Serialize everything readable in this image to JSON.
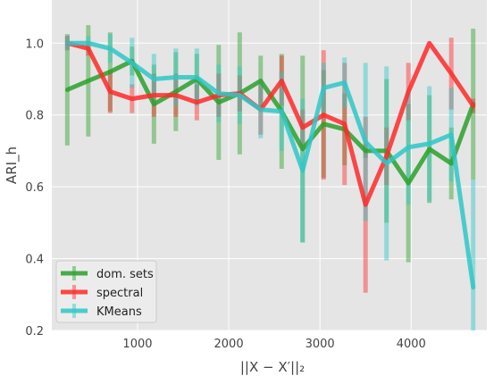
{
  "chart_data": {
    "type": "line",
    "xlabel": "||X − X′||₂",
    "ylabel": "ARI_h",
    "xlim": [
      60,
      4830
    ],
    "ylim": [
      0.2,
      1.12
    ],
    "xticks": [
      1000,
      2000,
      3000,
      4000
    ],
    "xtick_labels": [
      "1000",
      "2000",
      "3000",
      "4000"
    ],
    "yticks": [
      0.2,
      0.4,
      0.6,
      0.8,
      1.0
    ],
    "ytick_labels": [
      "0.2",
      "0.4",
      "0.6",
      "0.8",
      "1.0"
    ],
    "grid": true,
    "legend_position": "lower-left",
    "background": "#e5e5e5",
    "series": [
      {
        "name": "dom. sets",
        "color": "#2ca02c",
        "x": [
          230,
          460,
          700,
          940,
          1180,
          1420,
          1650,
          1890,
          2120,
          2350,
          2580,
          2810,
          3040,
          3270,
          3500,
          3730,
          3970,
          4200,
          4440,
          4680
        ],
        "y": [
          0.87,
          0.895,
          0.92,
          0.95,
          0.83,
          0.865,
          0.9,
          0.835,
          0.86,
          0.895,
          0.81,
          0.705,
          0.775,
          0.76,
          0.7,
          0.7,
          0.61,
          0.705,
          0.665,
          0.83
        ],
        "err": [
          0.155,
          0.155,
          0.11,
          0.04,
          0.11,
          0.11,
          0.07,
          0.16,
          0.17,
          0.07,
          0.16,
          0.26,
          0.15,
          0.1,
          0.02,
          0.2,
          0.22,
          0.15,
          0.1,
          0.21
        ]
      },
      {
        "name": "spectral",
        "color": "#ff2a2a",
        "x": [
          230,
          460,
          700,
          940,
          1180,
          1420,
          1650,
          1890,
          2120,
          2350,
          2580,
          2810,
          3040,
          3270,
          3500,
          3730,
          3970,
          4200,
          4440,
          4680
        ],
        "y": [
          1.0,
          0.985,
          0.865,
          0.845,
          0.855,
          0.855,
          0.835,
          0.855,
          0.86,
          0.815,
          0.895,
          0.765,
          0.8,
          0.775,
          0.55,
          0.685,
          0.865,
          1.0,
          0.915,
          0.825
        ],
        "err": [
          0.02,
          0.02,
          0.06,
          0.04,
          0.06,
          0.06,
          0.05,
          0.06,
          0.05,
          0.07,
          0.07,
          0.05,
          0.18,
          0.17,
          0.245,
          0.08,
          0.08,
          0.0,
          0.1,
          0.02
        ]
      },
      {
        "name": "KMeans",
        "color": "#2fc7c7",
        "x": [
          230,
          460,
          700,
          940,
          1180,
          1420,
          1650,
          1890,
          2120,
          2350,
          2580,
          2810,
          3040,
          3270,
          3500,
          3730,
          3970,
          4200,
          4440,
          4680
        ],
        "y": [
          1.0,
          1.0,
          0.985,
          0.945,
          0.9,
          0.905,
          0.905,
          0.86,
          0.855,
          0.815,
          0.81,
          0.645,
          0.875,
          0.89,
          0.725,
          0.665,
          0.71,
          0.72,
          0.745,
          0.32
        ],
        "err": [
          0.02,
          0.02,
          0.04,
          0.07,
          0.07,
          0.08,
          0.08,
          0.08,
          0.08,
          0.08,
          0.11,
          0.2,
          0.07,
          0.07,
          0.22,
          0.27,
          0.16,
          0.16,
          0.13,
          0.3
        ]
      }
    ]
  }
}
